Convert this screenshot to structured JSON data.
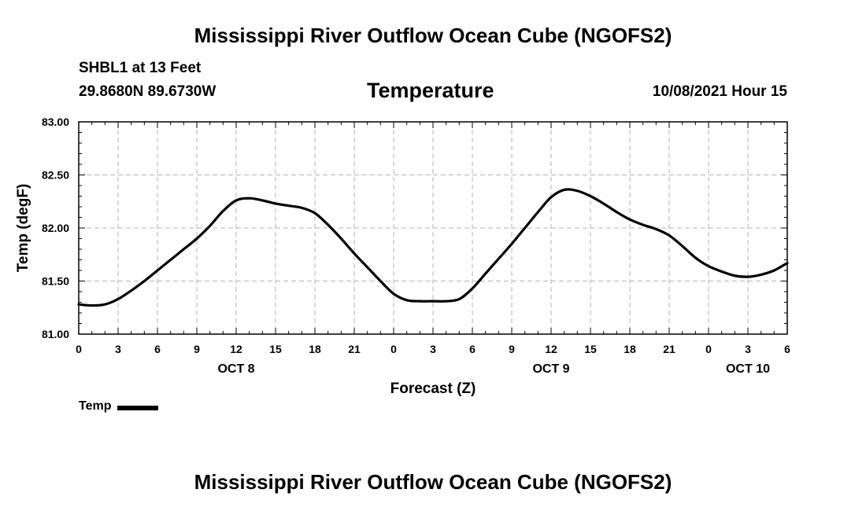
{
  "header": {
    "title": "Mississippi River Outflow Ocean Cube (NGOFS2)",
    "station": "SHBL1 at 13 Feet",
    "coords": "29.8680N  89.6730W",
    "parameter": "Temperature",
    "timestamp": "10/08/2021 Hour 15"
  },
  "footer": {
    "title": "Mississippi River Outflow Ocean Cube (NGOFS2)"
  },
  "legend": {
    "label": "Temp"
  },
  "colors": {
    "line": "#000000",
    "grid": "#b4b4b4",
    "axis": "#000000"
  },
  "chart_data": {
    "type": "line",
    "title": "Temperature",
    "xlabel": "Forecast (Z)",
    "ylabel": "Temp (degF)",
    "xlim": [
      0,
      54
    ],
    "ylim": [
      81.0,
      83.0
    ],
    "x_tick_values": [
      0,
      3,
      6,
      9,
      12,
      15,
      18,
      21,
      24,
      27,
      30,
      33,
      36,
      39,
      42,
      45,
      48,
      51,
      54
    ],
    "x_tick_labels": [
      "0",
      "3",
      "6",
      "9",
      "12",
      "15",
      "18",
      "21",
      "0",
      "3",
      "6",
      "9",
      "12",
      "15",
      "18",
      "21",
      "0",
      "3",
      "6"
    ],
    "y_tick_values": [
      81.0,
      81.5,
      82.0,
      82.5,
      83.0
    ],
    "y_tick_labels": [
      "81.00",
      "81.50",
      "82.00",
      "82.50",
      "83.00"
    ],
    "day_labels": [
      {
        "x": 12,
        "label": "OCT 8"
      },
      {
        "x": 36,
        "label": "OCT 9"
      },
      {
        "x": 51,
        "label": "OCT 10"
      }
    ],
    "grid": true,
    "series": [
      {
        "name": "Temp",
        "x": [
          0,
          1,
          2,
          3,
          4,
          5,
          6,
          7,
          8,
          9,
          10,
          11,
          12,
          13,
          14,
          15,
          16,
          17,
          18,
          19,
          20,
          21,
          22,
          23,
          24,
          25,
          26,
          27,
          28,
          29,
          30,
          31,
          32,
          33,
          34,
          35,
          36,
          37,
          38,
          39,
          40,
          41,
          42,
          43,
          44,
          45,
          46,
          47,
          48,
          49,
          50,
          51,
          52,
          53,
          54
        ],
        "values": [
          81.28,
          81.27,
          81.28,
          81.33,
          81.41,
          81.5,
          81.6,
          81.7,
          81.8,
          81.9,
          82.02,
          82.16,
          82.26,
          82.28,
          82.26,
          82.23,
          82.21,
          82.19,
          82.14,
          82.03,
          81.9,
          81.76,
          81.63,
          81.5,
          81.38,
          81.32,
          81.31,
          81.31,
          81.31,
          81.33,
          81.43,
          81.57,
          81.71,
          81.85,
          82.0,
          82.15,
          82.29,
          82.36,
          82.35,
          82.3,
          82.23,
          82.15,
          82.08,
          82.03,
          81.99,
          81.93,
          81.83,
          81.72,
          81.64,
          81.59,
          81.55,
          81.54,
          81.56,
          81.6,
          81.67
        ]
      }
    ]
  }
}
